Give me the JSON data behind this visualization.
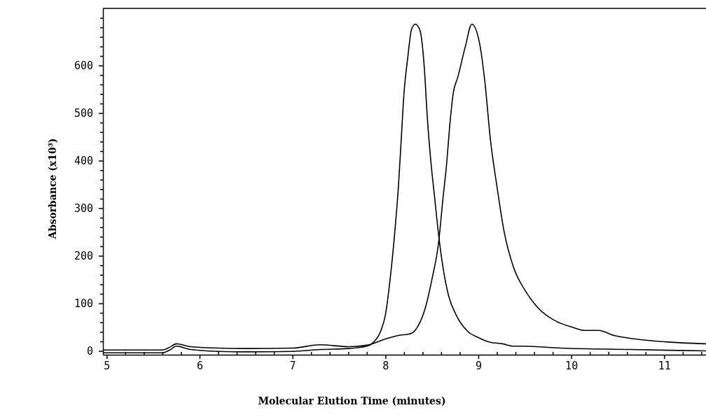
{
  "chart_data": {
    "type": "line",
    "xlabel": "Molecular Elution Time (minutes)",
    "ylabel": "Absorbance (x10³)",
    "xlim": [
      4.96,
      11.45
    ],
    "ylim": [
      -8,
      720
    ],
    "xticks": [
      5,
      {
        "value": 5.2,
        "label": null
      },
      {
        "value": 5.4,
        "label": null
      },
      {
        "value": 5.6,
        "label": null
      },
      {
        "value": 5.8,
        "label": null
      },
      6,
      {
        "value": 6.2,
        "label": null
      },
      {
        "value": 6.4,
        "label": null
      },
      {
        "value": 6.6,
        "label": null
      },
      {
        "value": 6.8,
        "label": null
      },
      7,
      {
        "value": 7.2,
        "label": null
      },
      {
        "value": 7.4,
        "label": null
      },
      {
        "value": 7.6,
        "label": null
      },
      {
        "value": 7.8,
        "label": null
      },
      8,
      {
        "value": 8.2,
        "label": null
      },
      {
        "value": 8.4,
        "label": null
      },
      {
        "value": 8.6,
        "label": null
      },
      {
        "value": 8.8,
        "label": null
      },
      9,
      {
        "value": 9.2,
        "label": null
      },
      {
        "value": 9.4,
        "label": null
      },
      {
        "value": 9.6,
        "label": null
      },
      {
        "value": 9.8,
        "label": null
      },
      10,
      {
        "value": 10.2,
        "label": null
      },
      {
        "value": 10.4,
        "label": null
      },
      {
        "value": 10.6,
        "label": null
      },
      {
        "value": 10.8,
        "label": null
      },
      11,
      {
        "value": 11.2,
        "label": null
      },
      {
        "value": 11.4,
        "label": null
      }
    ],
    "yticks": [
      0,
      {
        "value": 20,
        "label": null
      },
      {
        "value": 40,
        "label": null
      },
      {
        "value": 60,
        "label": null
      },
      {
        "value": 80,
        "label": null
      },
      100,
      {
        "value": 120,
        "label": null
      },
      {
        "value": 140,
        "label": null
      },
      {
        "value": 160,
        "label": null
      },
      {
        "value": 180,
        "label": null
      },
      200,
      {
        "value": 220,
        "label": null
      },
      {
        "value": 240,
        "label": null
      },
      {
        "value": 260,
        "label": null
      },
      {
        "value": 280,
        "label": null
      },
      300,
      {
        "value": 320,
        "label": null
      },
      {
        "value": 340,
        "label": null
      },
      {
        "value": 360,
        "label": null
      },
      {
        "value": 380,
        "label": null
      },
      400,
      {
        "value": 420,
        "label": null
      },
      {
        "value": 440,
        "label": null
      },
      {
        "value": 460,
        "label": null
      },
      {
        "value": 480,
        "label": null
      },
      500,
      {
        "value": 520,
        "label": null
      },
      {
        "value": 540,
        "label": null
      },
      {
        "value": 560,
        "label": null
      },
      {
        "value": 580,
        "label": null
      },
      600,
      {
        "value": 620,
        "label": null
      },
      {
        "value": 640,
        "label": null
      },
      {
        "value": 660,
        "label": null
      },
      {
        "value": 680,
        "label": null
      },
      {
        "value": 700,
        "label": null
      }
    ],
    "grid": false,
    "marker": "none",
    "line_style": "solid",
    "series": [
      {
        "color": "#000000",
        "x": [
          4.96,
          5.6,
          5.68,
          5.75,
          5.9,
          6.2,
          6.5,
          7.0,
          7.3,
          7.6,
          7.8,
          7.87,
          7.95,
          8.0,
          8.05,
          8.1,
          8.14,
          8.17,
          8.2,
          8.24,
          8.28,
          8.32,
          8.37,
          8.42,
          8.45,
          8.49,
          8.53,
          8.57,
          8.62,
          8.68,
          8.76,
          8.88,
          9.0,
          9.13,
          9.26,
          9.38,
          9.48,
          9.89,
          10.64,
          11.45
        ],
        "values": [
          -4,
          -4,
          2,
          10,
          3,
          -1,
          -2,
          -1,
          3,
          5,
          10,
          18,
          42,
          76,
          150,
          248,
          346,
          444,
          542,
          616,
          675,
          687,
          675,
          591,
          493,
          396,
          322,
          248,
          175,
          116,
          76,
          42,
          28,
          18,
          15,
          10,
          10,
          6,
          3,
          0
        ]
      },
      {
        "color": "#000000",
        "x": [
          4.96,
          5.6,
          5.68,
          5.75,
          5.9,
          6.2,
          6.5,
          7.0,
          7.3,
          7.6,
          7.8,
          8.0,
          8.13,
          8.28,
          8.35,
          8.43,
          8.5,
          8.57,
          8.62,
          8.66,
          8.69,
          8.73,
          8.78,
          8.86,
          8.93,
          9.01,
          9.07,
          9.13,
          9.2,
          9.28,
          9.38,
          9.51,
          9.64,
          9.84,
          10.01,
          10.14,
          10.29,
          10.47,
          10.69,
          11.02,
          11.45
        ],
        "values": [
          2,
          2,
          8,
          15,
          9,
          6,
          5,
          6,
          13,
          9,
          12,
          25,
          32,
          37,
          52,
          91,
          150,
          224,
          322,
          396,
          469,
          542,
          576,
          640,
          687,
          650,
          566,
          444,
          346,
          248,
          175,
          125,
          91,
          62,
          50,
          43,
          43,
          32,
          25,
          19,
          15
        ]
      }
    ]
  }
}
